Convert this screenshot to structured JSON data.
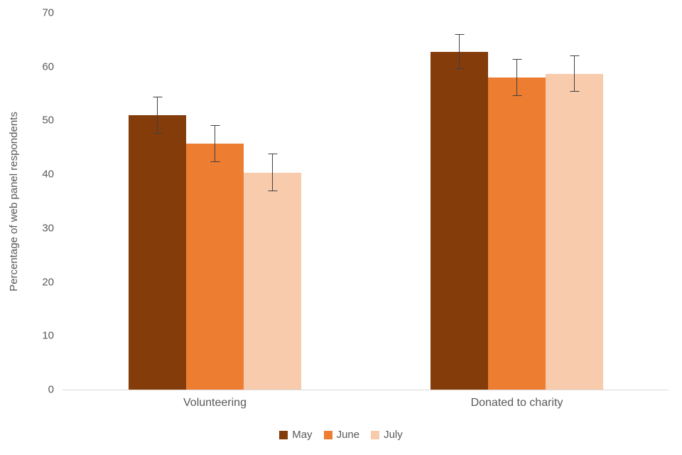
{
  "chart_data": {
    "type": "bar",
    "title": "",
    "categories": [
      "Volunteering",
      "Donated to charity"
    ],
    "series": [
      {
        "name": "May",
        "color": "#843C0B",
        "values": [
          51.0,
          62.8
        ],
        "errors": [
          3.4,
          3.3
        ]
      },
      {
        "name": "June",
        "color": "#ED7D31",
        "values": [
          45.7,
          58.0
        ],
        "errors": [
          3.4,
          3.4
        ]
      },
      {
        "name": "July",
        "color": "#F8CBAD",
        "values": [
          40.3,
          58.7
        ],
        "errors": [
          3.5,
          3.4
        ]
      }
    ],
    "xlabel": "",
    "ylabel": "Percentage of web panel respondents",
    "ylim": [
      0,
      70
    ],
    "yticks": [
      0,
      10,
      20,
      30,
      40,
      50,
      60,
      70
    ],
    "grid": false,
    "legend_position": "bottom",
    "error_bars": true
  },
  "colors": {
    "axis_line": "#D9D9D9",
    "text": "#595959",
    "error_bar": "#404040",
    "background": "#FFFFFF"
  }
}
